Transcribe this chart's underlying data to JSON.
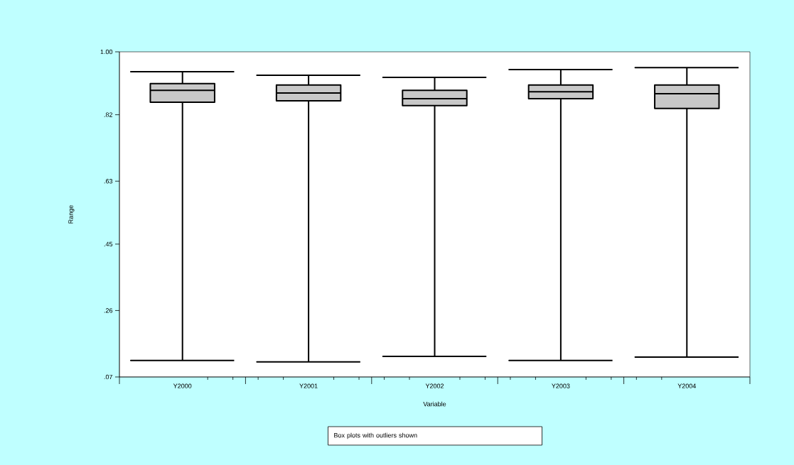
{
  "chart_data": {
    "type": "box",
    "xlabel": "Variable",
    "ylabel": "Range",
    "categories": [
      "Y2000",
      "Y2001",
      "Y2002",
      "Y2003",
      "Y2004"
    ],
    "boxes": [
      {
        "low": 0.117,
        "q1": 0.856,
        "median": 0.89,
        "q3": 0.909,
        "high": 0.943
      },
      {
        "low": 0.113,
        "q1": 0.86,
        "median": 0.882,
        "q3": 0.905,
        "high": 0.933
      },
      {
        "low": 0.129,
        "q1": 0.846,
        "median": 0.866,
        "q3": 0.89,
        "high": 0.927
      },
      {
        "low": 0.117,
        "q1": 0.866,
        "median": 0.886,
        "q3": 0.905,
        "high": 0.949
      },
      {
        "low": 0.127,
        "q1": 0.838,
        "median": 0.88,
        "q3": 0.905,
        "high": 0.955
      }
    ],
    "color": "#c8c8c8",
    "ylim": [
      0.07,
      1.0
    ],
    "yticks": [
      {
        "value": 0.07,
        "label": ".07"
      },
      {
        "value": 0.26,
        "label": ".26"
      },
      {
        "value": 0.45,
        "label": ".45"
      },
      {
        "value": 0.63,
        "label": ".63"
      },
      {
        "value": 0.82,
        "label": ".82"
      },
      {
        "value": 1.0,
        "label": "1.00"
      }
    ],
    "annotations": [
      "Box plots with outliers shown"
    ],
    "grid": false
  }
}
